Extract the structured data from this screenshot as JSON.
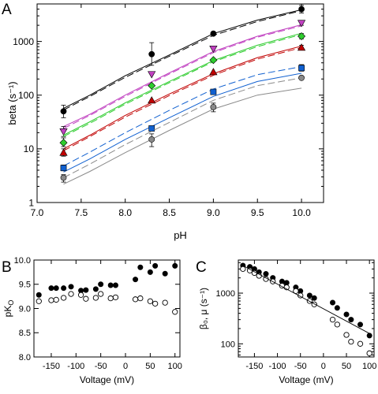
{
  "colors": {
    "black": "#000000",
    "magenta": "#c040c0",
    "green": "#2ecc2e",
    "red": "#c00000",
    "blue": "#1060d0",
    "gray": "#8a8a8a"
  },
  "panels": {
    "a": {
      "letter": "A"
    },
    "b": {
      "letter": "B"
    },
    "c": {
      "letter": "C"
    }
  },
  "chart_data": [
    {
      "panel": "A",
      "type": "scatter",
      "xlabel": "pH",
      "ylabel": "beta (s⁻¹)",
      "xlim": [
        7.0,
        10.25
      ],
      "ylim": [
        1,
        5000
      ],
      "yscale": "log",
      "xticks": [
        "7.0",
        "7.5",
        "8.0",
        "8.5",
        "9.0",
        "9.5",
        "10.0"
      ],
      "xtick_values": [
        7.0,
        7.5,
        8.0,
        8.5,
        9.0,
        9.5,
        10.0
      ],
      "yticks": [
        "1",
        "10",
        "100",
        "1000"
      ],
      "ytick_values": [
        1,
        10,
        100,
        1000
      ],
      "x": [
        7.3,
        8.3,
        9.0,
        10.0
      ],
      "series": [
        {
          "color": "#000000",
          "marker": "circle",
          "values": [
            50,
            580,
            1400,
            4000
          ],
          "err": [
            [
              38,
              65
            ],
            [
              360,
              950
            ],
            [
              null,
              null
            ],
            [
              3400,
              4700
            ]
          ],
          "fit": [
            [
              7.3,
              57
            ],
            [
              7.6,
              100
            ],
            [
              8.0,
              230
            ],
            [
              8.5,
              560
            ],
            [
              9.0,
              1400
            ],
            [
              9.5,
              2500
            ],
            [
              10.0,
              3900
            ]
          ],
          "fit2": [
            [
              7.3,
              53
            ],
            [
              7.6,
              95
            ],
            [
              8.0,
              215
            ],
            [
              8.5,
              530
            ],
            [
              9.0,
              1300
            ],
            [
              9.5,
              2350
            ],
            [
              10.0,
              3750
            ]
          ]
        },
        {
          "color": "#c040c0",
          "marker": "triangle-down",
          "values": [
            21,
            245,
            730,
            2200
          ],
          "err": [
            [
              17,
              26
            ],
            [
              null,
              null
            ],
            [
              null,
              null
            ],
            [
              2000,
              2450
            ]
          ],
          "fit": [
            [
              7.3,
              26
            ],
            [
              7.6,
              44
            ],
            [
              8.0,
              100
            ],
            [
              8.5,
              260
            ],
            [
              9.0,
              650
            ],
            [
              9.5,
              1250
            ],
            [
              10.0,
              2050
            ]
          ],
          "fit2": [
            [
              7.3,
              24
            ],
            [
              7.6,
              42
            ],
            [
              8.0,
              95
            ],
            [
              8.5,
              248
            ],
            [
              9.0,
              620
            ],
            [
              9.5,
              1200
            ],
            [
              10.0,
              1950
            ]
          ]
        },
        {
          "color": "#2ecc2e",
          "marker": "diamond",
          "values": [
            13,
            150,
            450,
            1250
          ],
          "err": [
            [
              11,
              16
            ],
            [
              null,
              null
            ],
            [
              null,
              null
            ],
            [
              1120,
              1400
            ]
          ],
          "fit": [
            [
              7.3,
              18
            ],
            [
              7.6,
              32
            ],
            [
              8.0,
              72
            ],
            [
              8.5,
              180
            ],
            [
              9.0,
              440
            ],
            [
              9.5,
              850
            ],
            [
              10.0,
              1420
            ]
          ],
          "fit2": [
            [
              7.3,
              17
            ],
            [
              7.6,
              30
            ],
            [
              8.0,
              68
            ],
            [
              8.5,
              170
            ],
            [
              9.0,
              420
            ],
            [
              9.5,
              800
            ],
            [
              10.0,
              1350
            ]
          ]
        },
        {
          "color": "#c00000",
          "marker": "triangle-up",
          "values": [
            8.5,
            80,
            270,
            770
          ],
          "err": [
            [
              7.3,
              10
            ],
            [
              null,
              null
            ],
            [
              null,
              null
            ],
            [
              700,
              850
            ]
          ],
          "fit": [
            [
              7.3,
              10
            ],
            [
              7.6,
              18
            ],
            [
              8.0,
              42
            ],
            [
              8.5,
              105
            ],
            [
              9.0,
              250
            ],
            [
              9.5,
              500
            ],
            [
              10.0,
              820
            ]
          ],
          "fit2": [
            [
              7.3,
              9.2
            ],
            [
              7.6,
              17
            ],
            [
              8.0,
              39
            ],
            [
              8.5,
              98
            ],
            [
              9.0,
              235
            ],
            [
              9.5,
              470
            ],
            [
              10.0,
              770
            ]
          ]
        },
        {
          "color": "#1060d0",
          "marker": "square",
          "values": [
            4.4,
            24,
            115,
            320
          ],
          "err": [
            [
              3.9,
              5
            ],
            [
              null,
              null
            ],
            [
              null,
              null
            ],
            [
              280,
              370
            ]
          ],
          "fit": [
            [
              7.3,
              3.7
            ],
            [
              7.6,
              6.5
            ],
            [
              8.0,
              15
            ],
            [
              8.5,
              38
            ],
            [
              9.0,
              95
            ],
            [
              9.5,
              180
            ],
            [
              10.0,
              255
            ]
          ],
          "fit2": [
            [
              7.3,
              4.8
            ],
            [
              7.6,
              8.7
            ],
            [
              8.0,
              20
            ],
            [
              8.5,
              52
            ],
            [
              9.0,
              130
            ],
            [
              9.5,
              240
            ],
            [
              10.0,
              340
            ]
          ]
        },
        {
          "color": "#8a8a8a",
          "marker": "circle",
          "values": [
            2.9,
            15,
            60,
            210
          ],
          "err": [
            [
              2.4,
              3.3
            ],
            [
              11,
              19
            ],
            [
              49,
              71
            ],
            [
              null,
              null
            ]
          ],
          "fit": [
            [
              7.3,
              2.2
            ],
            [
              7.6,
              3.8
            ],
            [
              8.0,
              8.5
            ],
            [
              8.5,
              22
            ],
            [
              9.0,
              55
            ],
            [
              9.5,
              100
            ],
            [
              10.0,
              135
            ]
          ],
          "fit2": [
            [
              7.3,
              2.9
            ],
            [
              7.6,
              5.2
            ],
            [
              8.0,
              12
            ],
            [
              8.5,
              31
            ],
            [
              9.0,
              80
            ],
            [
              9.5,
              150
            ],
            [
              10.0,
              210
            ]
          ]
        }
      ]
    },
    {
      "panel": "B",
      "type": "scatter",
      "xlabel": "Voltage (mV)",
      "ylabel": "pK",
      "ylabel_sub": "O",
      "xlim": [
        -185,
        110
      ],
      "ylim": [
        8.0,
        10.0
      ],
      "xticks": [
        "-150",
        "-100",
        "-50",
        "0",
        "50",
        "100"
      ],
      "xtick_values": [
        -150,
        -100,
        -50,
        0,
        50,
        100
      ],
      "yticks": [
        "8.0",
        "8.5",
        "9.0",
        "9.5",
        "10.0"
      ],
      "ytick_values": [
        8.0,
        8.5,
        9.0,
        9.5,
        10.0
      ],
      "series": [
        {
          "marker": "filled-circle",
          "x": [
            -175,
            -150,
            -140,
            -125,
            -110,
            -90,
            -80,
            -60,
            -50,
            -30,
            -20,
            20,
            30,
            50,
            60,
            80,
            100
          ],
          "values": [
            9.28,
            9.42,
            9.42,
            9.42,
            9.45,
            9.37,
            9.38,
            9.4,
            9.5,
            9.48,
            9.48,
            9.6,
            9.85,
            9.75,
            9.88,
            9.72,
            9.88
          ]
        },
        {
          "marker": "open-circle",
          "x": [
            -175,
            -150,
            -140,
            -125,
            -110,
            -90,
            -80,
            -60,
            -50,
            -30,
            -20,
            20,
            30,
            50,
            60,
            80,
            100
          ],
          "values": [
            9.15,
            9.17,
            9.18,
            9.22,
            9.3,
            9.28,
            9.2,
            9.22,
            9.3,
            9.21,
            9.23,
            9.19,
            9.21,
            9.15,
            9.1,
            9.12,
            8.93
          ]
        }
      ]
    },
    {
      "panel": "C",
      "type": "scatter",
      "xlabel": "Voltage (mV)",
      "ylabel": "β₀, μ (s⁻¹)",
      "xlim": [
        -185,
        110
      ],
      "ylim": [
        55,
        4500
      ],
      "yscale": "log",
      "xticks": [
        "-150",
        "-100",
        "-50",
        "0",
        "50",
        "100"
      ],
      "xtick_values": [
        -150,
        -100,
        -50,
        0,
        50,
        100
      ],
      "yticks": [
        "100",
        "1000"
      ],
      "ytick_values": [
        100,
        1000
      ],
      "series": [
        {
          "marker": "filled-circle",
          "x": [
            -175,
            -160,
            -150,
            -140,
            -125,
            -110,
            -90,
            -80,
            -60,
            -50,
            -30,
            -20,
            20,
            30,
            50,
            60,
            80,
            100
          ],
          "values": [
            3500,
            3300,
            3000,
            2600,
            2400,
            2000,
            1700,
            1600,
            1300,
            1100,
            900,
            800,
            650,
            510,
            380,
            300,
            240,
            145
          ]
        },
        {
          "marker": "open-circle",
          "x": [
            -175,
            -160,
            -150,
            -140,
            -125,
            -110,
            -90,
            -80,
            -60,
            -50,
            -30,
            -20,
            20,
            30,
            50,
            60,
            80,
            100
          ],
          "values": [
            3000,
            2800,
            2500,
            2200,
            1900,
            1700,
            1400,
            1300,
            1100,
            900,
            700,
            600,
            300,
            240,
            150,
            110,
            100,
            65
          ]
        },
        {
          "marker": "line",
          "x": [
            -180,
            100
          ],
          "values": [
            3700,
            160
          ]
        }
      ]
    }
  ]
}
